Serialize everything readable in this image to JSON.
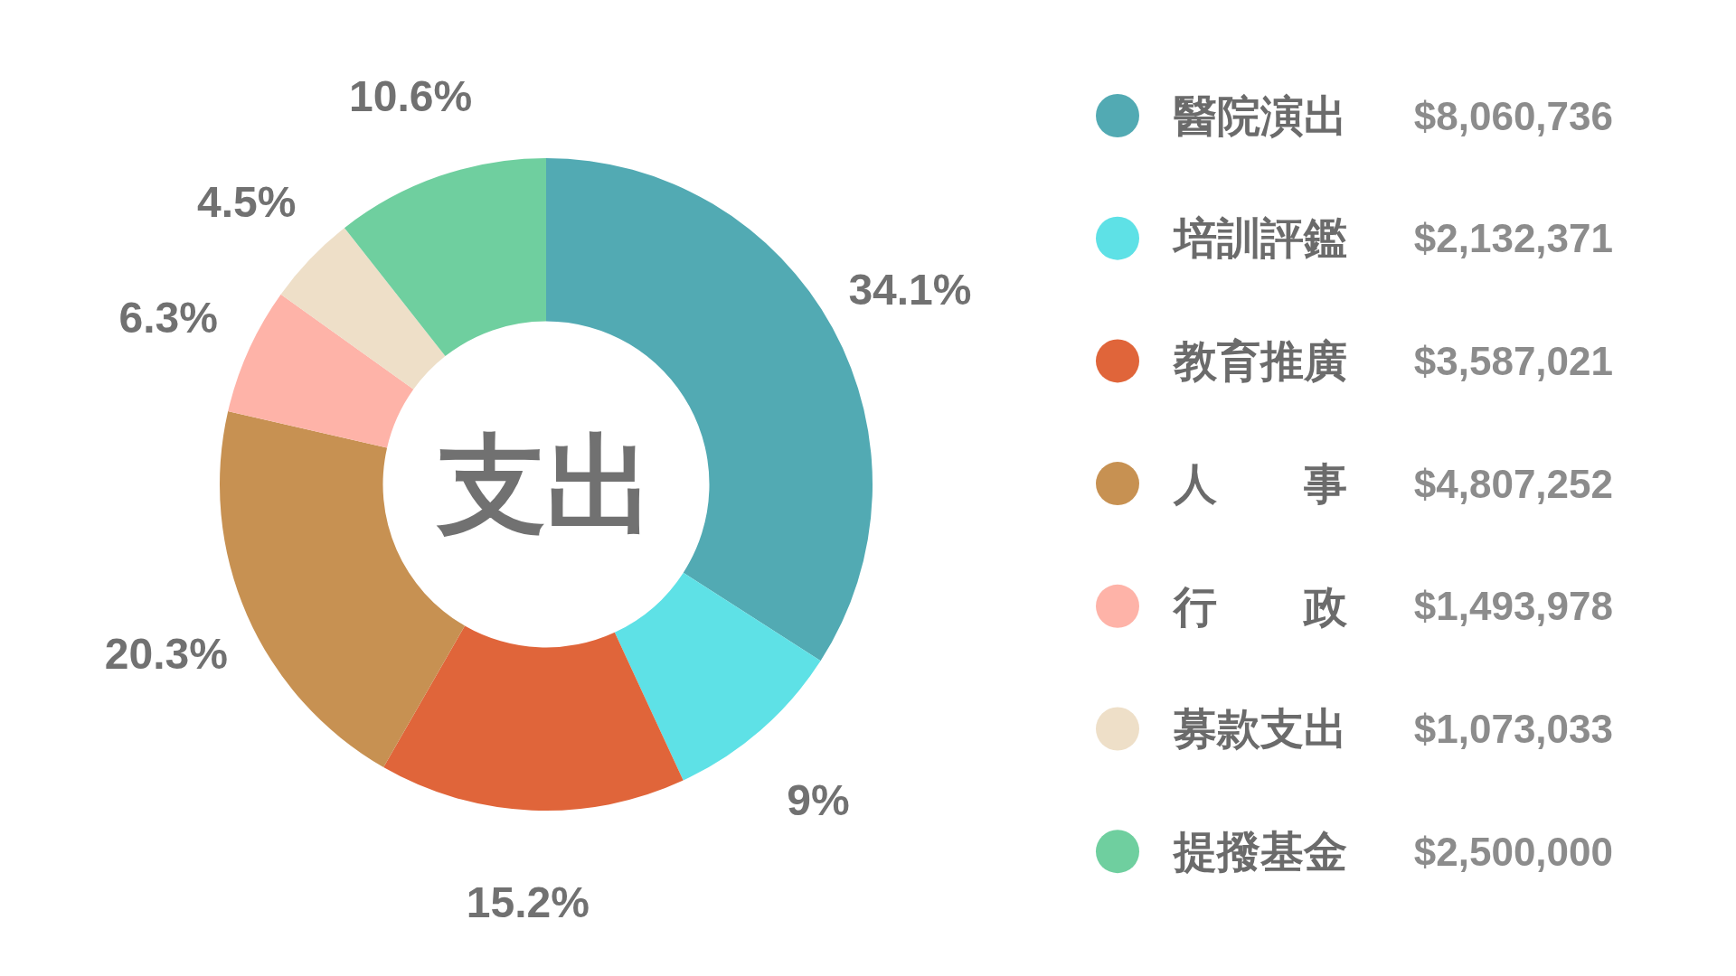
{
  "chart_data": {
    "type": "donut",
    "title": "支出",
    "categories": [
      "醫院演出",
      "培訓評鑑",
      "教育推廣",
      "人事",
      "行政",
      "募款支出",
      "提撥基金"
    ],
    "values": [
      34.1,
      9,
      15.2,
      20.3,
      6.3,
      4.5,
      10.6
    ],
    "colors": [
      "#52aab3",
      "#5ee1e6",
      "#e0653a",
      "#c79152",
      "#feb3a8",
      "#eedfc8",
      "#6fcf9f"
    ],
    "value_labels": [
      "34.1%",
      "9%",
      "15.2%",
      "20.3%",
      "6.3%",
      "4.5%",
      "10.6%"
    ],
    "legend": "right",
    "annotations": [
      "$8,060,736",
      "$2,132,371",
      "$3,587,021",
      "$4,807,252",
      "$1,493,978",
      "$1,073,033",
      "$2,500,000"
    ]
  }
}
